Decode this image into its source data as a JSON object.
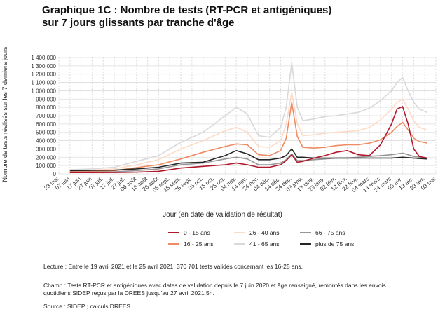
{
  "title": {
    "line1": "Graphique 1C : Nombre de tests (RT-PCR et antigéniques)",
    "line2": "sur 7 jours glissants par tranche d'âge"
  },
  "chart_data": {
    "type": "line",
    "ylabel": "Nombre de tests réalisés sur les 7 derniers jours",
    "xlabel": "Jour (en date de validation de résultat)",
    "ylim": [
      0,
      1400000
    ],
    "yticks": [
      0,
      100000,
      200000,
      300000,
      400000,
      500000,
      600000,
      700000,
      800000,
      900000,
      1000000,
      1100000,
      1200000,
      1300000,
      1400000
    ],
    "ytick_labels": [
      "0",
      "100 000",
      "200 000",
      "300 000",
      "400 000",
      "500 000",
      "600 000",
      "700 000",
      "800 000",
      "900 000",
      "1 000 000",
      "1 100 000",
      "1 200 000",
      "1 300 000",
      "1 400 000"
    ],
    "xtick_labels": [
      "28 mai",
      "07 juin",
      "17 juin",
      "27 juin",
      "07 juil.",
      "17 juil.",
      "27 juil.",
      "06 août",
      "16 août",
      "26 août",
      "05 sept.",
      "15 sept.",
      "25 sept.",
      "05 oct.",
      "15 oct.",
      "25 oct.",
      "04 nov.",
      "14 nov.",
      "24 nov.",
      "04 déc.",
      "14 déc.",
      "24 déc.",
      "03 janv.",
      "13 janv.",
      "23 janv.",
      "02 févr.",
      "12 févr.",
      "22 févr.",
      "04 mars",
      "14 mars",
      "24 mars",
      "03 avr.",
      "13 avr.",
      "23 avr.",
      "03 mai"
    ],
    "grid": true,
    "legend_position": "bottom",
    "x_dates": [
      "2020-06-07",
      "2020-06-27",
      "2020-07-17",
      "2020-08-06",
      "2020-08-26",
      "2020-09-15",
      "2020-10-05",
      "2020-10-25",
      "2020-11-04",
      "2020-11-14",
      "2020-11-24",
      "2020-12-04",
      "2020-12-14",
      "2020-12-19",
      "2020-12-24",
      "2020-12-29",
      "2021-01-03",
      "2021-01-13",
      "2021-01-23",
      "2021-02-02",
      "2021-02-12",
      "2021-02-22",
      "2021-03-04",
      "2021-03-14",
      "2021-03-24",
      "2021-03-29",
      "2021-04-03",
      "2021-04-08",
      "2021-04-13",
      "2021-04-18",
      "2021-04-25"
    ],
    "series": [
      {
        "name": "0 - 15 ans",
        "color": "#b2182b",
        "values": [
          15000,
          15000,
          16000,
          20000,
          30000,
          70000,
          90000,
          110000,
          130000,
          110000,
          80000,
          80000,
          110000,
          160000,
          230000,
          140000,
          150000,
          190000,
          220000,
          260000,
          280000,
          230000,
          220000,
          350000,
          600000,
          780000,
          810000,
          600000,
          300000,
          210000,
          190000
        ]
      },
      {
        "name": "16 - 25 ans",
        "color": "#ef8a62",
        "values": [
          30000,
          32000,
          40000,
          75000,
          110000,
          180000,
          260000,
          330000,
          360000,
          350000,
          230000,
          220000,
          280000,
          430000,
          860000,
          450000,
          320000,
          310000,
          320000,
          340000,
          350000,
          350000,
          370000,
          410000,
          500000,
          570000,
          620000,
          530000,
          430000,
          390000,
          371000
        ]
      },
      {
        "name": "26 - 40 ans",
        "color": "#fddbc7",
        "values": [
          40000,
          45000,
          60000,
          110000,
          170000,
          300000,
          400000,
          520000,
          560000,
          500000,
          330000,
          320000,
          400000,
          600000,
          980000,
          600000,
          460000,
          470000,
          490000,
          500000,
          510000,
          520000,
          560000,
          650000,
          780000,
          860000,
          900000,
          780000,
          640000,
          560000,
          530000
        ]
      },
      {
        "name": "41 - 65 ans",
        "color": "#d9d9d9",
        "values": [
          50000,
          60000,
          80000,
          150000,
          220000,
          380000,
          500000,
          700000,
          800000,
          720000,
          460000,
          440000,
          560000,
          800000,
          1340000,
          800000,
          640000,
          660000,
          690000,
          700000,
          720000,
          740000,
          790000,
          880000,
          1000000,
          1100000,
          1160000,
          1000000,
          860000,
          780000,
          740000
        ]
      },
      {
        "name": "66 - 75 ans",
        "color": "#969696",
        "values": [
          20000,
          22000,
          25000,
          40000,
          60000,
          110000,
          130000,
          180000,
          200000,
          180000,
          110000,
          110000,
          130000,
          170000,
          240000,
          160000,
          160000,
          170000,
          180000,
          190000,
          190000,
          200000,
          210000,
          220000,
          230000,
          240000,
          250000,
          230000,
          210000,
          200000,
          190000
        ]
      },
      {
        "name": "plus de 75 ans",
        "color": "#252525",
        "values": [
          40000,
          42000,
          45000,
          60000,
          80000,
          130000,
          140000,
          220000,
          280000,
          240000,
          170000,
          170000,
          190000,
          220000,
          300000,
          200000,
          200000,
          190000,
          190000,
          190000,
          190000,
          190000,
          190000,
          190000,
          190000,
          195000,
          200000,
          195000,
          190000,
          185000,
          180000
        ]
      }
    ]
  },
  "legend": {
    "items": [
      {
        "label": "0 - 15 ans",
        "color": "#b2182b"
      },
      {
        "label": "26 - 40 ans",
        "color": "#fddbc7"
      },
      {
        "label": "66 - 75 ans",
        "color": "#969696"
      },
      {
        "label": "16 - 25 ans",
        "color": "#ef8a62"
      },
      {
        "label": "41 - 65 ans",
        "color": "#d9d9d9"
      },
      {
        "label": "plus de 75 ans",
        "color": "#252525"
      }
    ]
  },
  "notes": {
    "lecture": "Lecture : Entre le 19 avril 2021 et le 25 avril 2021, 370 701 tests validés concernant les 16-25 ans.",
    "champ": "Champ : Tests RT-PCR et antigéniques avec dates de validation depuis le 7 juin 2020 et âge renseigné, remontés dans les envois quotidiens SIDEP reçus par la DREES jusqu'au 27 avril 2021 5h.",
    "source": "Source : SIDEP ; calculs DREES."
  }
}
